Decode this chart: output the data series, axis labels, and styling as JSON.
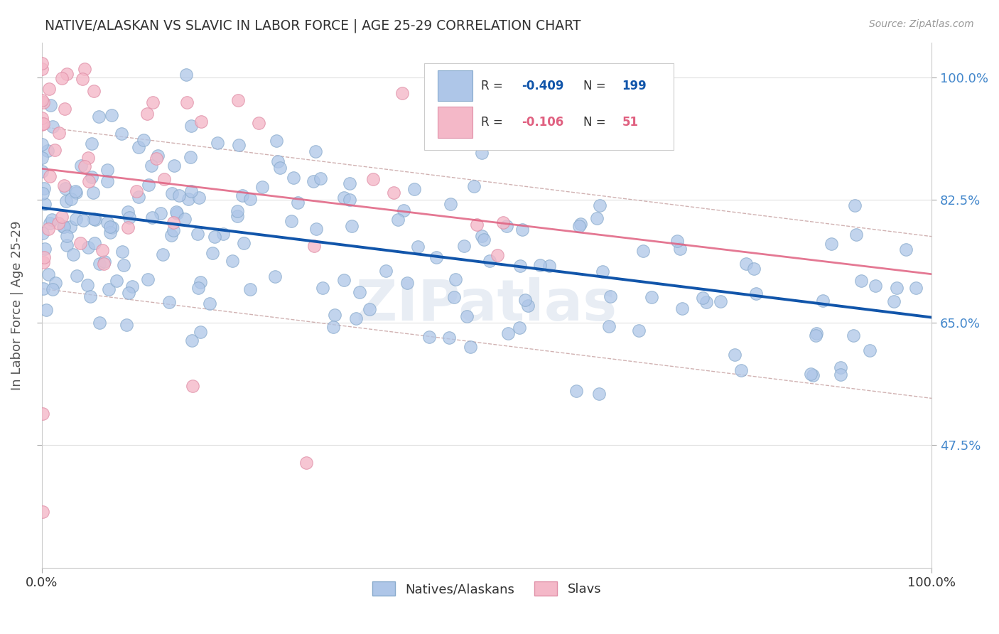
{
  "title": "NATIVE/ALASKAN VS SLAVIC IN LABOR FORCE | AGE 25-29 CORRELATION CHART",
  "source": "Source: ZipAtlas.com",
  "ylabel": "In Labor Force | Age 25-29",
  "xmin": 0.0,
  "xmax": 1.0,
  "ymin": 0.3,
  "ymax": 1.05,
  "yticks": [
    0.475,
    0.65,
    0.825,
    1.0
  ],
  "ytick_labels": [
    "47.5%",
    "65.0%",
    "82.5%",
    "100.0%"
  ],
  "r_blue": -0.409,
  "n_blue": 199,
  "r_pink": -0.106,
  "n_pink": 51,
  "blue_color": "#aec6e8",
  "blue_edge_color": "#88aacc",
  "pink_color": "#f4b8c8",
  "pink_edge_color": "#e090a8",
  "blue_line_color": "#1155aa",
  "pink_line_color": "#e06080",
  "ci_line_color": "#ccaaaa",
  "watermark": "ZIPatlas",
  "title_color": "#333333",
  "ylabel_color": "#555555",
  "ytick_color": "#4488cc",
  "xtick_color": "#333333",
  "source_color": "#999999",
  "legend_border_color": "#cccccc",
  "blue_legend_r": "-0.409",
  "blue_legend_n": "199",
  "pink_legend_r": "-0.106",
  "pink_legend_n": "51"
}
